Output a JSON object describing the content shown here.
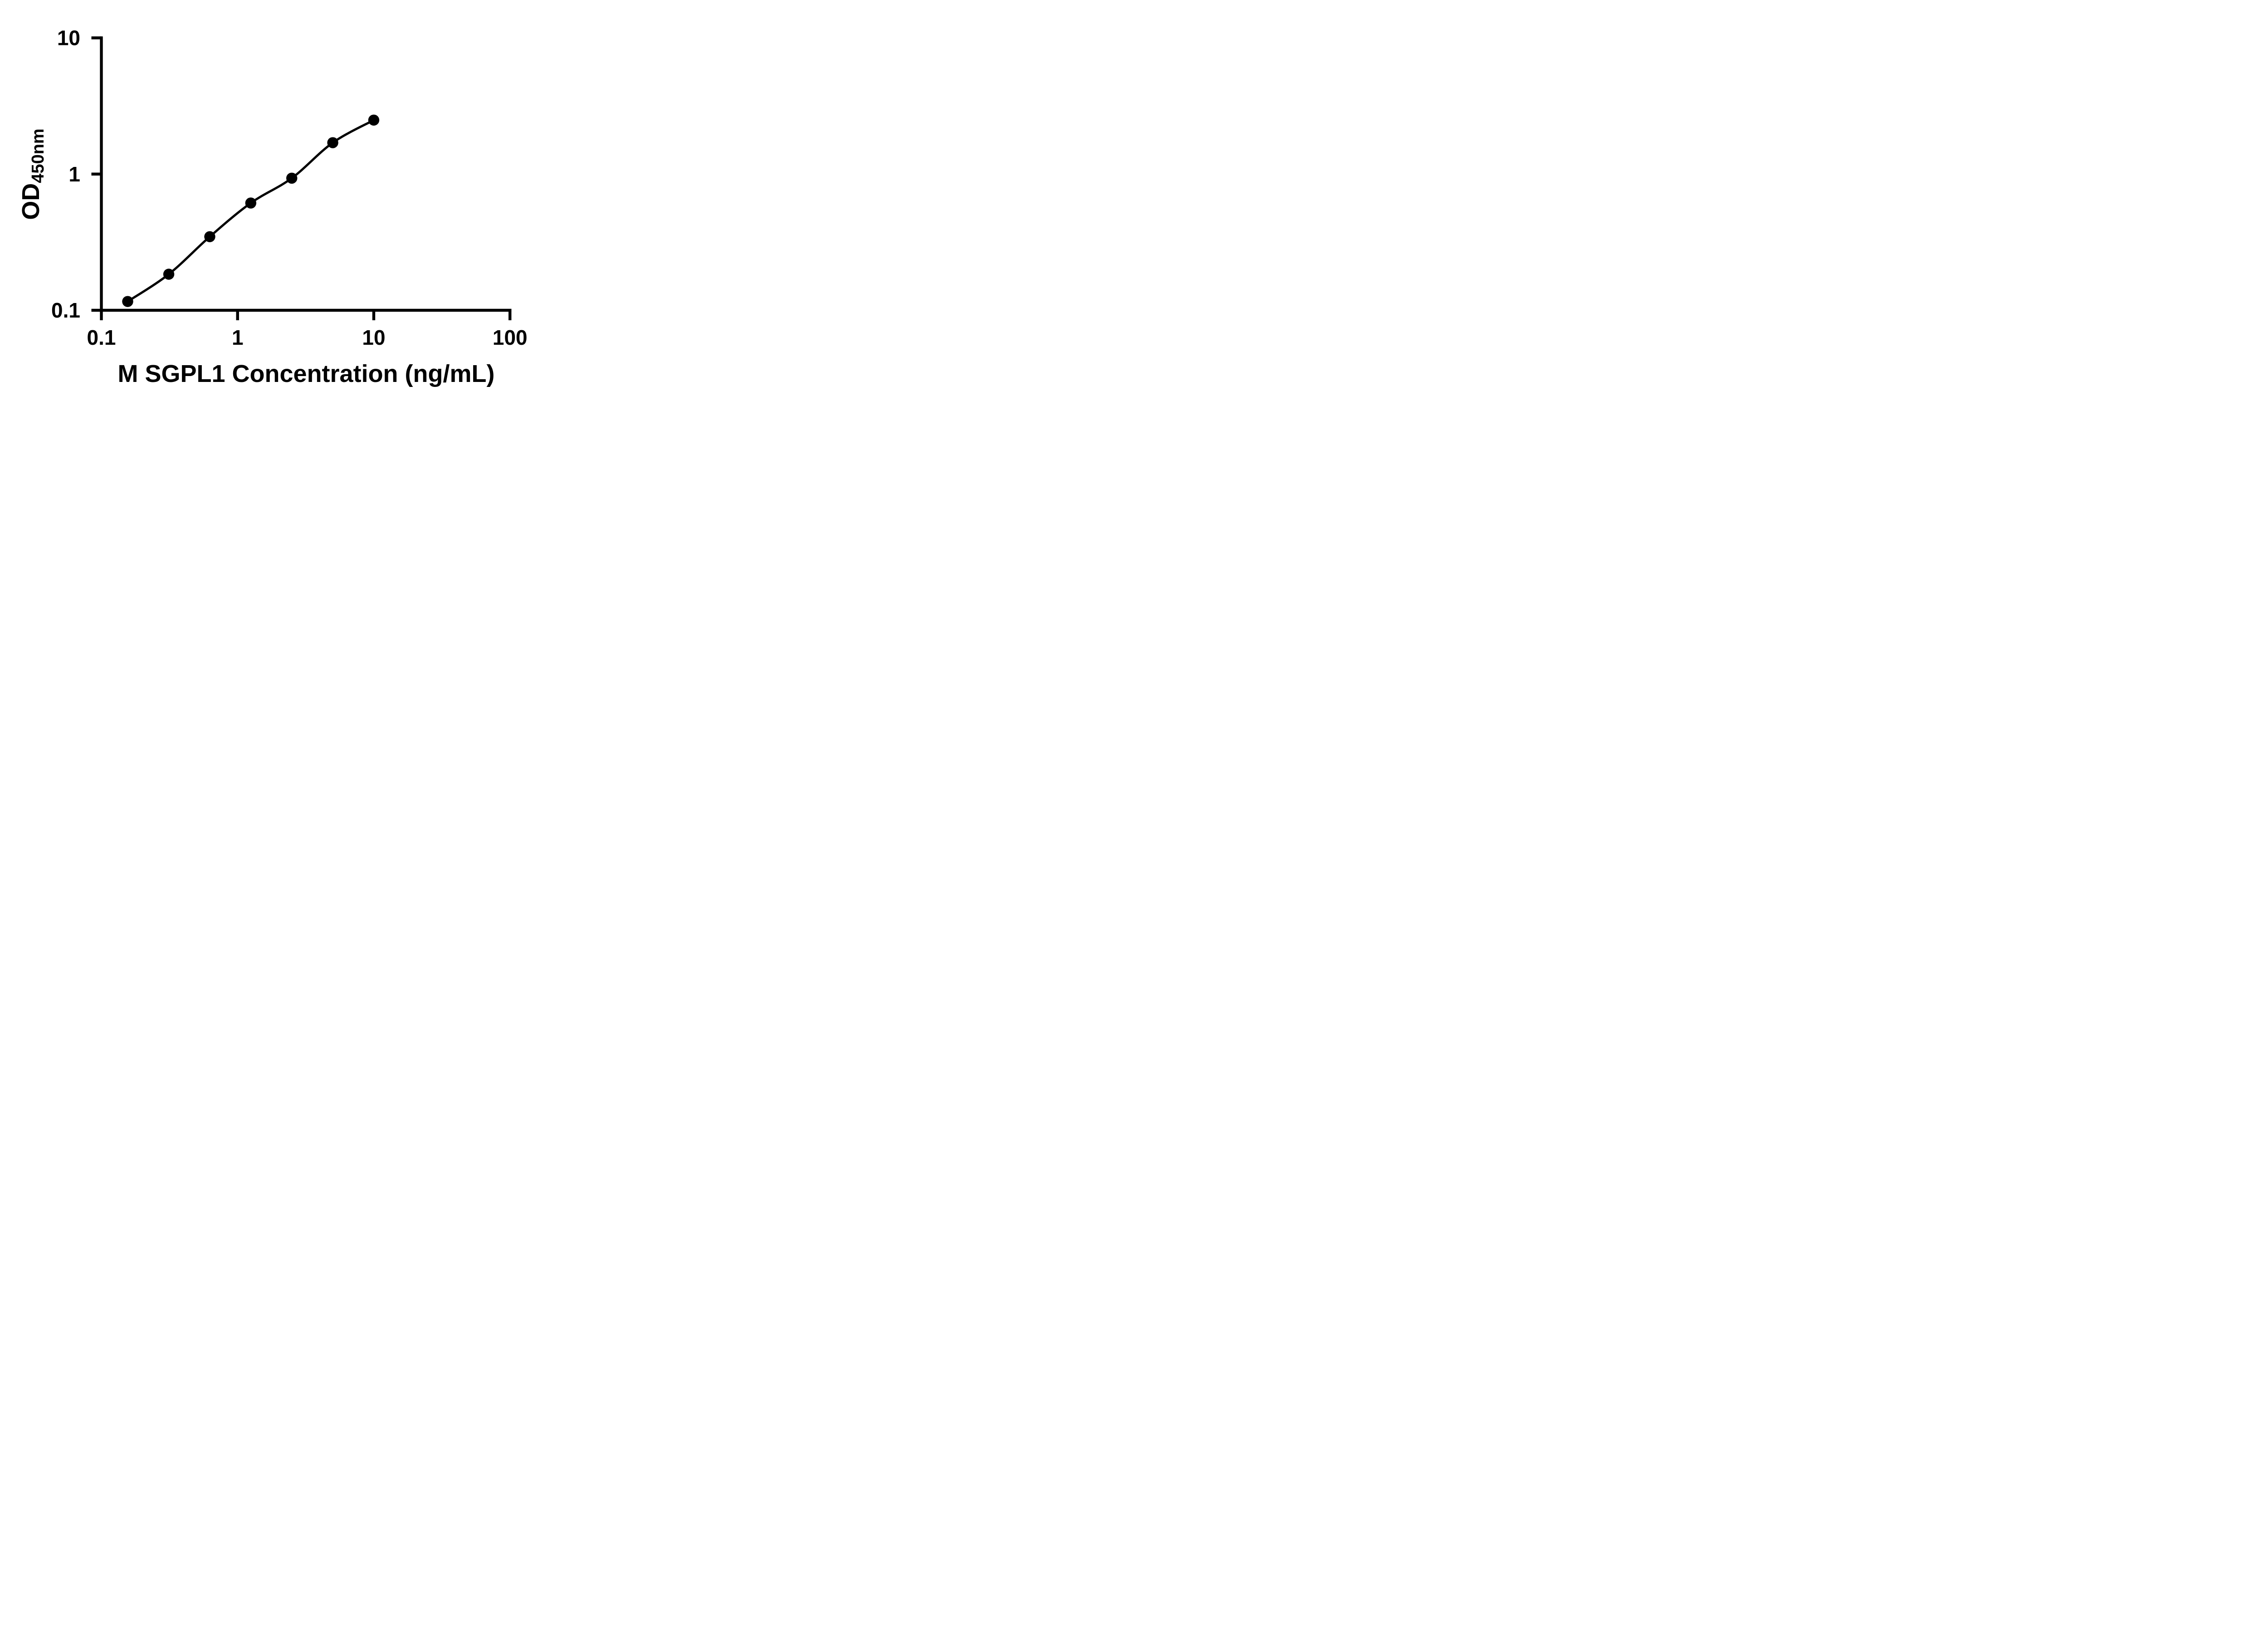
{
  "chart_data": {
    "type": "scatter",
    "title": "",
    "xlabel": "M SGPL1 Concentration (ng/mL)",
    "ylabel_main": "OD",
    "ylabel_sub": "450nm",
    "x_scale": "log",
    "y_scale": "log",
    "xlim": [
      0.1,
      100
    ],
    "ylim": [
      0.1,
      10
    ],
    "grid": false,
    "legend": "none",
    "curve_style": "smooth",
    "x_ticks": [
      {
        "value": 0.1,
        "label": "0.1"
      },
      {
        "value": 1,
        "label": "1"
      },
      {
        "value": 10,
        "label": "10"
      },
      {
        "value": 100,
        "label": "100"
      }
    ],
    "y_ticks": [
      {
        "value": 0.1,
        "label": "0.1"
      },
      {
        "value": 1,
        "label": "1"
      },
      {
        "value": 10,
        "label": "10"
      }
    ],
    "series": [
      {
        "marker": "circle",
        "color": "#000000",
        "x": [
          0.156,
          0.3125,
          0.625,
          1.25,
          2.5,
          5,
          10
        ],
        "y": [
          0.116,
          0.184,
          0.347,
          0.613,
          0.933,
          1.7,
          2.49
        ]
      }
    ]
  },
  "colors": {
    "line": "#000000",
    "marker": "#000000",
    "text": "#000000",
    "background": "#ffffff"
  }
}
